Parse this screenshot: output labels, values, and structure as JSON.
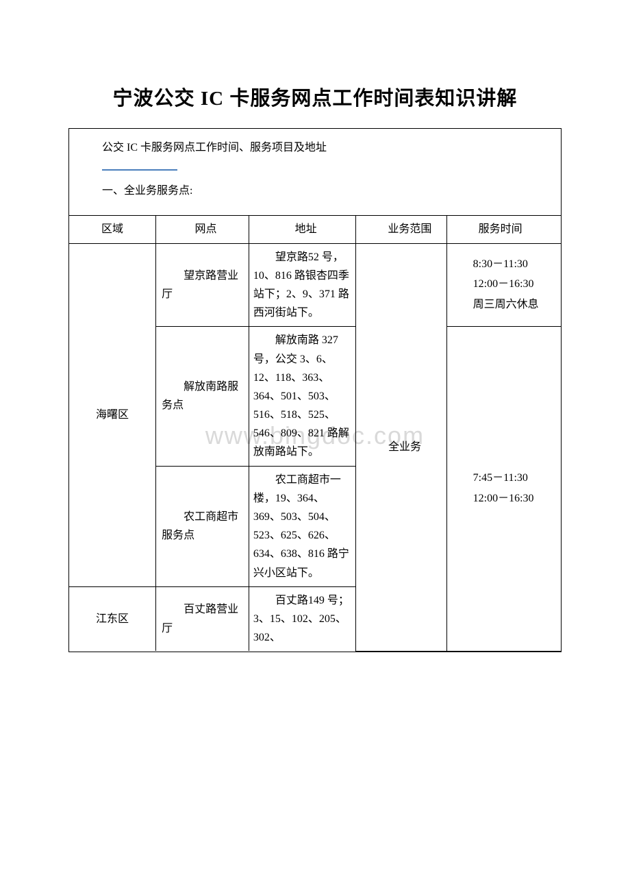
{
  "title": "宁波公交 IC 卡服务网点工作时间表知识讲解",
  "intro": "公交 IC 卡服务网点工作时间、服务项目及地址",
  "section_heading": "一、全业务服务点:",
  "watermark": "www.bingdoc.com",
  "table": {
    "headers": {
      "region": "区域",
      "branch": "网点",
      "address": "地址",
      "scope": "业务范围",
      "time": "服务时间"
    },
    "scope_value": "全业务",
    "rows": [
      {
        "region": "海曙区",
        "branch": "望京路营业厅",
        "address": "望京路52 号，10、816 路银杏四季站下；2、9、371 路西河街站下。",
        "time_lines": [
          "8:30－11:30",
          "12:00－16:30",
          "周三周六休息"
        ]
      },
      {
        "branch": "解放南路服务点",
        "address": "解放南路 327 号，公交 3、6、12、118、363、364、501、503、516、518、525、546、809、821 路解放南路站下。",
        "time_lines": []
      },
      {
        "branch": "农工商超市服务点",
        "address": "农工商超市一楼，19、364、369、503、504、523、625、626、634、638、816 路宁兴小区站下。",
        "time_lines": [
          "7:45－11:30",
          "12:00－16:30"
        ]
      },
      {
        "region": "江东区",
        "branch": "百丈路营业厅",
        "address": "百丈路149 号；3、15、102、205、302、",
        "time_lines": []
      }
    ]
  },
  "colors": {
    "border": "#000000",
    "blue_line": "#4a7ebb",
    "watermark": "#d9d9d9",
    "background": "#ffffff",
    "text": "#000000"
  }
}
